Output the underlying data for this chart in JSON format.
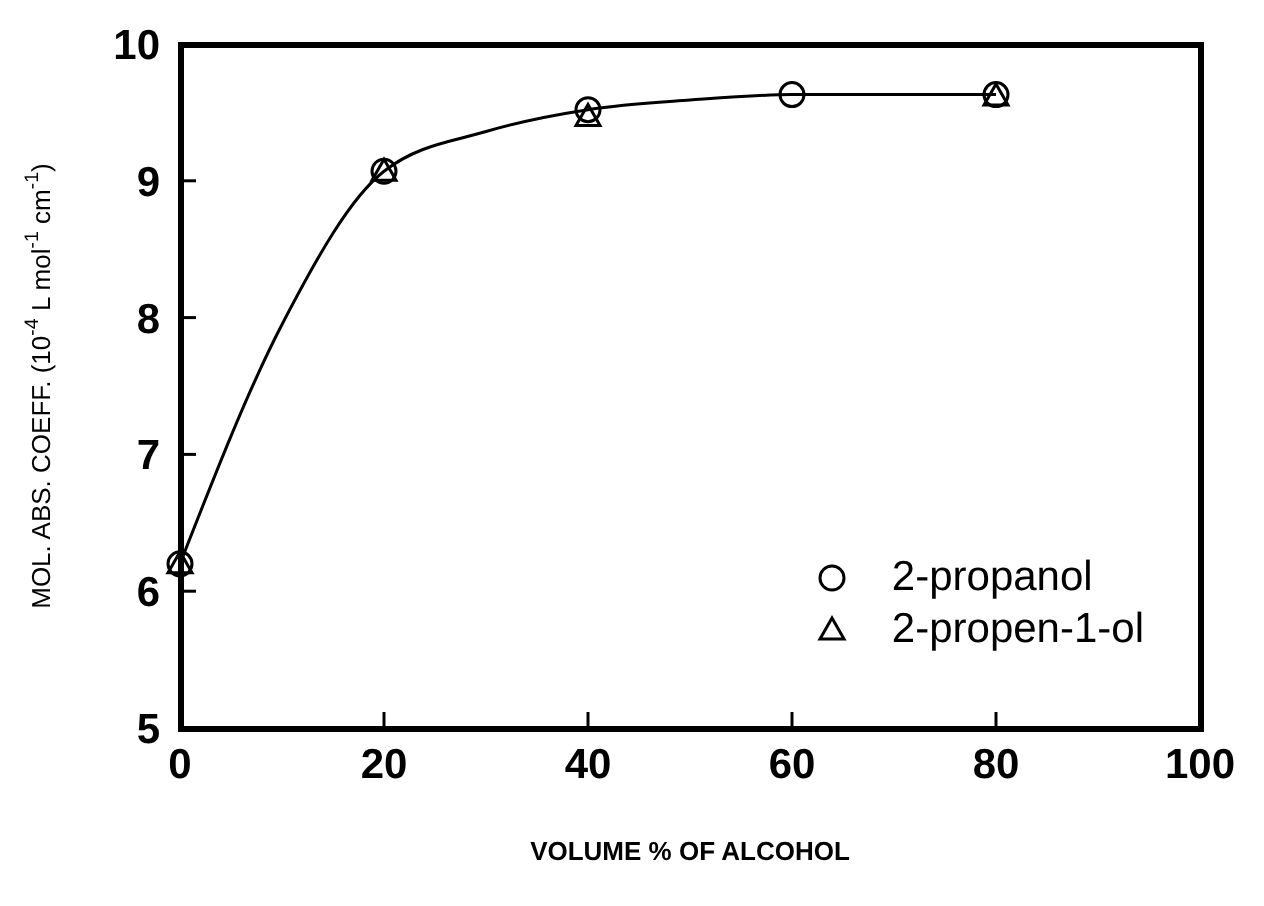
{
  "chart_data": {
    "type": "scatter",
    "xlabel": "VOLUME % OF ALCOHOL",
    "ylabel": "MOL. ABS. COEFF. (10$^{-4}$ L mol$^{-1}$ cm$^{-1}$)",
    "xlim": [
      0,
      100
    ],
    "ylim": [
      5,
      10
    ],
    "xticks": [
      0,
      20,
      40,
      60,
      80,
      100
    ],
    "yticks": [
      5,
      6,
      7,
      8,
      9,
      10
    ],
    "grid": false,
    "legend": "bottom right",
    "series": [
      {
        "type": "line",
        "color": "#000000",
        "marker": "none",
        "x": [
          0,
          10,
          20,
          30,
          40,
          50,
          60,
          70,
          80
        ],
        "values": [
          6.2,
          7.95,
          9.07,
          9.36,
          9.52,
          9.59,
          9.63,
          9.63,
          9.63
        ]
      },
      {
        "name": "2-propanol",
        "color": "#000000",
        "marker": "circle",
        "x": [
          0,
          20,
          40,
          60,
          80
        ],
        "values": [
          6.2,
          9.07,
          9.52,
          9.63,
          9.63
        ]
      },
      {
        "name": "2-propen-1-ol",
        "color": "#000000",
        "marker": "triangle",
        "x": [
          0,
          20,
          40,
          80
        ],
        "values": [
          6.2,
          9.07,
          9.47,
          9.62
        ]
      }
    ]
  }
}
